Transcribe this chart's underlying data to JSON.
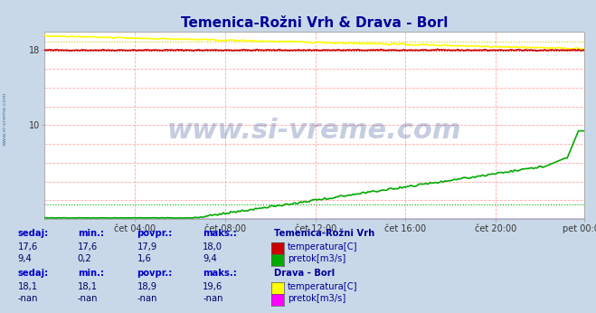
{
  "title": "Temenica-Rožni Vrh & Drava - Borl",
  "title_color": "#000099",
  "bg_color": "#c8d8e8",
  "plot_bg_color": "#ffffff",
  "xlim": [
    0,
    287
  ],
  "ylim": [
    0,
    20
  ],
  "xtick_labels": [
    "čet 04:00",
    "čet 08:00",
    "čet 12:00",
    "čet 16:00",
    "čet 20:00",
    "pet 00:00"
  ],
  "xtick_positions": [
    48,
    96,
    144,
    192,
    240,
    287
  ],
  "watermark": "www.si-vreme.com",
  "watermark_color": "#1a3a8a",
  "watermark_alpha": 0.25,
  "station1_name": "Temenica-Rožni Vrh",
  "station2_name": "Drava - Borl",
  "temp1_color": "#cc0000",
  "flow1_color": "#00aa00",
  "temp2_color": "#ffff00",
  "flow2_color": "#ff00ff",
  "label_color": "#0000cc",
  "value_color": "#000066",
  "legend_color": "#000099",
  "font_size_title": 11,
  "font_size_labels": 8,
  "station1_sedaj": "17,6",
  "station1_min": "17,6",
  "station1_povpr": "17,9",
  "station1_maks": "18,0",
  "station1_flow_sedaj": "9,4",
  "station1_flow_min": "0,2",
  "station1_flow_povpr": "1,6",
  "station1_flow_maks": "9,4",
  "station2_sedaj": "18,1",
  "station2_min": "18,1",
  "station2_povpr": "18,9",
  "station2_maks": "19,6",
  "station2_flow_sedaj": "-nan",
  "station2_flow_min": "-nan",
  "station2_flow_povpr": "-nan",
  "station2_flow_maks": "-nan",
  "avg_temp1": 17.9,
  "avg_flow1": 1.6,
  "avg_temp2": 18.9
}
